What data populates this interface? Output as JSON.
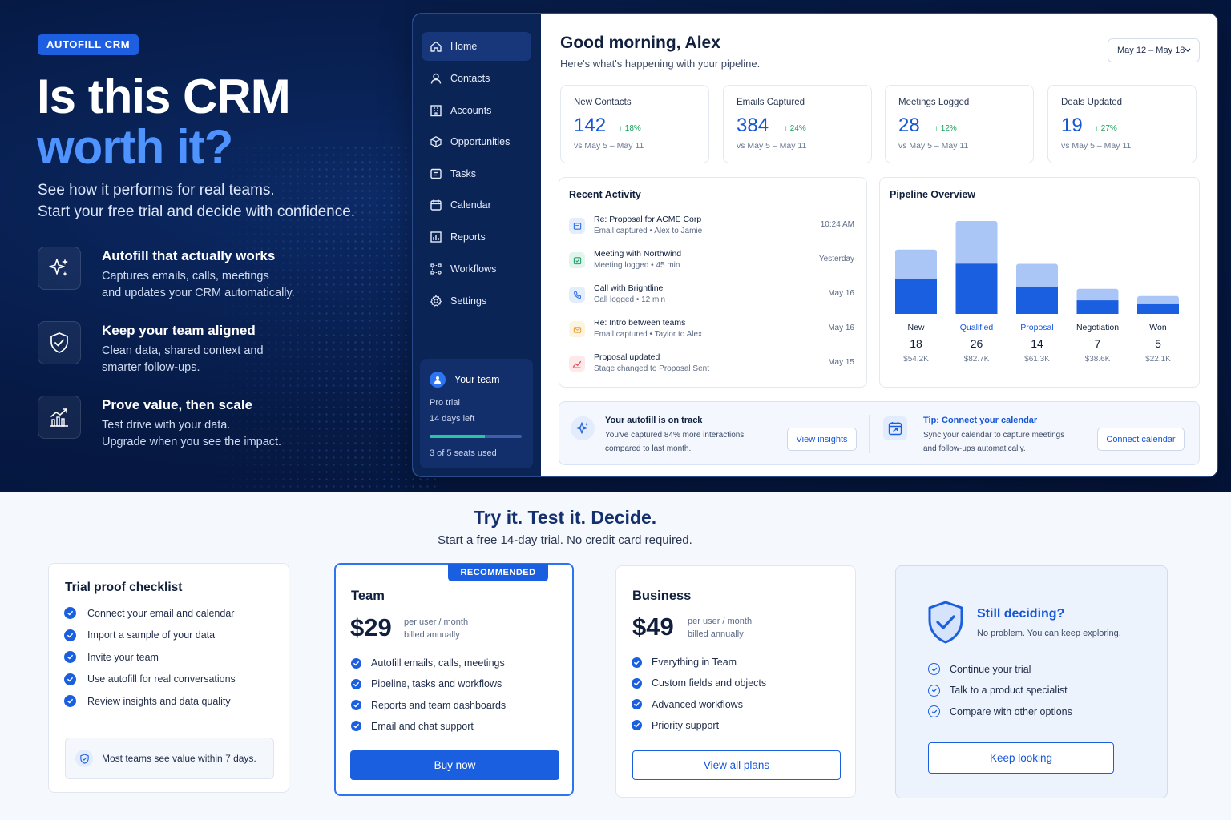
{
  "hero": {
    "brand": "AUTOFILL CRM",
    "title_line1": "Is this CRM",
    "title_line2": "worth it?",
    "subtitle_line1": "See how it performs for real teams.",
    "subtitle_line2": "Start your free trial and decide with confidence.",
    "features": [
      {
        "icon": "sparkle-icon",
        "title": "Autofill that actually works",
        "desc_line1": "Captures emails, calls, meetings",
        "desc_line2": "and updates your CRM automatically."
      },
      {
        "icon": "shield-check-icon",
        "title": "Keep your team aligned",
        "desc_line1": "Clean data, shared context and",
        "desc_line2": "smarter follow-ups."
      },
      {
        "icon": "chart-growth-icon",
        "title": "Prove value, then scale",
        "desc_line1": "Test drive with your data.",
        "desc_line2": "Upgrade when you see the impact."
      }
    ]
  },
  "app": {
    "sidebar": {
      "items": [
        {
          "label": "Home",
          "icon": "home-icon",
          "active": true
        },
        {
          "label": "Contacts",
          "icon": "user-icon"
        },
        {
          "label": "Accounts",
          "icon": "building-icon"
        },
        {
          "label": "Opportunities",
          "icon": "cube-icon"
        },
        {
          "label": "Tasks",
          "icon": "task-icon"
        },
        {
          "label": "Calendar",
          "icon": "calendar-icon"
        },
        {
          "label": "Reports",
          "icon": "reports-icon"
        },
        {
          "label": "Workflows",
          "icon": "workflow-icon"
        },
        {
          "label": "Settings",
          "icon": "gear-icon"
        }
      ],
      "team": {
        "title": "Your team",
        "plan": "Pro trial",
        "days": "14 days left",
        "seats": "3 of 5 seats used",
        "seats_used": 3,
        "seats_total": 5
      }
    },
    "header": {
      "greeting": "Good morning, Alex",
      "subtitle": "Here's what's happening with your pipeline.",
      "date_range": "May 12 – May 18"
    },
    "stats": [
      {
        "label": "New Contacts",
        "value": "142",
        "trend": "18%",
        "compare": "vs May 5 – May 11"
      },
      {
        "label": "Emails Captured",
        "value": "384",
        "trend": "24%",
        "compare": "vs May 5 – May 11"
      },
      {
        "label": "Meetings Logged",
        "value": "28",
        "trend": "12%",
        "compare": "vs May 5 – May 11"
      },
      {
        "label": "Deals Updated",
        "value": "19",
        "trend": "27%",
        "compare": "vs May 5 – May 11"
      }
    ],
    "activity": {
      "title": "Recent Activity",
      "items": [
        {
          "icon": "email-icon",
          "title": "Re: Proposal for ACME Corp",
          "desc": "Email captured • Alex to Jamie",
          "time": "10:24 AM",
          "color": "#2f6fe3",
          "bg": "#e4edfc"
        },
        {
          "icon": "meeting-icon",
          "title": "Meeting with Northwind",
          "desc": "Meeting logged • 45 min",
          "time": "Yesterday",
          "color": "#22a06b",
          "bg": "#e2f5ec"
        },
        {
          "icon": "phone-icon",
          "title": "Call with Brightline",
          "desc": "Call logged • 12 min",
          "time": "May 16",
          "color": "#2f6fe3",
          "bg": "#e4edfc"
        },
        {
          "icon": "email-open-icon",
          "title": "Re: Intro between teams",
          "desc": "Email captured • Taylor to Alex",
          "time": "May 16",
          "color": "#e6a23c",
          "bg": "#fdf3e1"
        },
        {
          "icon": "trend-icon",
          "title": "Proposal updated",
          "desc": "Stage changed to Proposal Sent",
          "time": "May 15",
          "color": "#e05260",
          "bg": "#fde8ea"
        }
      ]
    },
    "pipeline": {
      "title": "Pipeline Overview"
    },
    "tips": {
      "autofill": {
        "title": "Your autofill is on track",
        "desc_line1": "You've captured 84% more interactions",
        "desc_line2": "compared to last month.",
        "button": "View insights"
      },
      "calendar": {
        "title": "Tip: Connect your calendar",
        "desc_line1": "Sync your calendar to capture meetings",
        "desc_line2": "and follow-ups automatically.",
        "button": "Connect calendar"
      }
    }
  },
  "chart_data": {
    "type": "bar",
    "title": "Pipeline Overview",
    "categories": [
      "New",
      "Qualified",
      "Proposal",
      "Negotiation",
      "Won"
    ],
    "series": [
      {
        "values": [
          18,
          26,
          14,
          7,
          5
        ]
      }
    ],
    "values": [
      18,
      26,
      14,
      7,
      5
    ],
    "amounts": [
      "$54.2K",
      "$82.7K",
      "$61.3K",
      "$38.6K",
      "$22.1K"
    ],
    "colors": {
      "dark": "#1a5fe0",
      "light": "#a9c6f7",
      "label_highlight": "#1556d8"
    }
  },
  "lower": {
    "title": "Try it. Test it. Decide.",
    "subtitle": "Start a free 14-day trial. No credit card required.",
    "checklist": {
      "title": "Trial proof checklist",
      "items": [
        "Connect your email and calendar",
        "Import a sample of your data",
        "Invite your team",
        "Use autofill for real conversations",
        "Review insights and data quality"
      ],
      "note": "Most teams see value within 7 days."
    },
    "team_plan": {
      "badge": "RECOMMENDED",
      "name": "Team",
      "price": "$29",
      "per_line1": "per user / month",
      "per_line2": "billed annually",
      "features": [
        "Autofill emails, calls, meetings",
        "Pipeline, tasks and workflows",
        "Reports and team dashboards",
        "Email and chat support"
      ],
      "button": "Buy now"
    },
    "business_plan": {
      "name": "Business",
      "price": "$49",
      "per_line1": "per user / month",
      "per_line2": "billed annually",
      "features": [
        "Everything in Team",
        "Custom fields and objects",
        "Advanced workflows",
        "Priority support"
      ],
      "button": "View all plans"
    },
    "deciding": {
      "title": "Still deciding?",
      "subtitle": "No problem. You can keep exploring.",
      "items": [
        "Continue your trial",
        "Talk to a product specialist",
        "Compare with other options"
      ],
      "button": "Keep looking"
    }
  }
}
